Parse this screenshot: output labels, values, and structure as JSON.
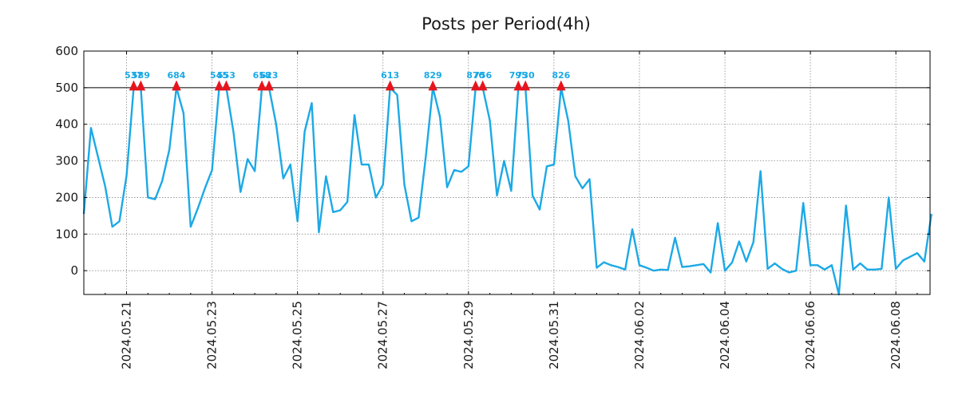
{
  "chart_data": {
    "type": "line",
    "title": "Posts per Period(4h)",
    "xlabel": "",
    "ylabel": "",
    "ylim": [
      -65,
      600
    ],
    "xlim_days": [
      0,
      19.8
    ],
    "start_date": "2024.05.20",
    "period_hours": 4,
    "grid": true,
    "threshold": 500,
    "line_color": "#1ca9e6",
    "marker_color": "#e8141c",
    "threshold_color": "#000000",
    "grid_color": "#888888",
    "yticks": [
      0,
      100,
      200,
      300,
      400,
      500,
      600
    ],
    "xticks": [
      {
        "day": 1,
        "label": "2024.05.21"
      },
      {
        "day": 3,
        "label": "2024.05.23"
      },
      {
        "day": 5,
        "label": "2024.05.25"
      },
      {
        "day": 7,
        "label": "2024.05.27"
      },
      {
        "day": 9,
        "label": "2024.05.29"
      },
      {
        "day": 11,
        "label": "2024.05.31"
      },
      {
        "day": 13,
        "label": "2024.06.02"
      },
      {
        "day": 15,
        "label": "2024.06.04"
      },
      {
        "day": 17,
        "label": "2024.06.06"
      },
      {
        "day": 19,
        "label": "2024.06.08"
      }
    ],
    "values": [
      155,
      390,
      310,
      230,
      120,
      135,
      260,
      537,
      589,
      200,
      195,
      245,
      330,
      684,
      430,
      120,
      170,
      225,
      275,
      545,
      553,
      380,
      215,
      305,
      272,
      658,
      623,
      400,
      252,
      290,
      135,
      380,
      458,
      105,
      258,
      160,
      165,
      188,
      425,
      290,
      290,
      200,
      235,
      613,
      480,
      235,
      135,
      145,
      310,
      829,
      420,
      228,
      275,
      270,
      285,
      870,
      756,
      410,
      205,
      300,
      218,
      795,
      730,
      205,
      167,
      285,
      290,
      826,
      410,
      258,
      225,
      250,
      8,
      23,
      15,
      10,
      3,
      113,
      15,
      8,
      0,
      3,
      2,
      90,
      10,
      12,
      15,
      18,
      -5,
      130,
      0,
      22,
      80,
      25,
      78,
      272,
      5,
      20,
      5,
      -5,
      0,
      185,
      15,
      15,
      3,
      15,
      -65,
      178,
      3,
      20,
      3,
      3,
      5,
      200,
      5,
      28,
      38,
      48,
      25,
      155
    ],
    "peaks": [
      {
        "index": 7,
        "label": "537"
      },
      {
        "index": 8,
        "label": "589"
      },
      {
        "index": 13,
        "label": "684"
      },
      {
        "index": 19,
        "label": "545"
      },
      {
        "index": 20,
        "label": "553"
      },
      {
        "index": 25,
        "label": "658"
      },
      {
        "index": 26,
        "label": "623"
      },
      {
        "index": 43,
        "label": "613"
      },
      {
        "index": 49,
        "label": "829"
      },
      {
        "index": 55,
        "label": "870"
      },
      {
        "index": 56,
        "label": "756"
      },
      {
        "index": 61,
        "label": "795"
      },
      {
        "index": 62,
        "label": "730"
      },
      {
        "index": 67,
        "label": "826"
      }
    ]
  }
}
